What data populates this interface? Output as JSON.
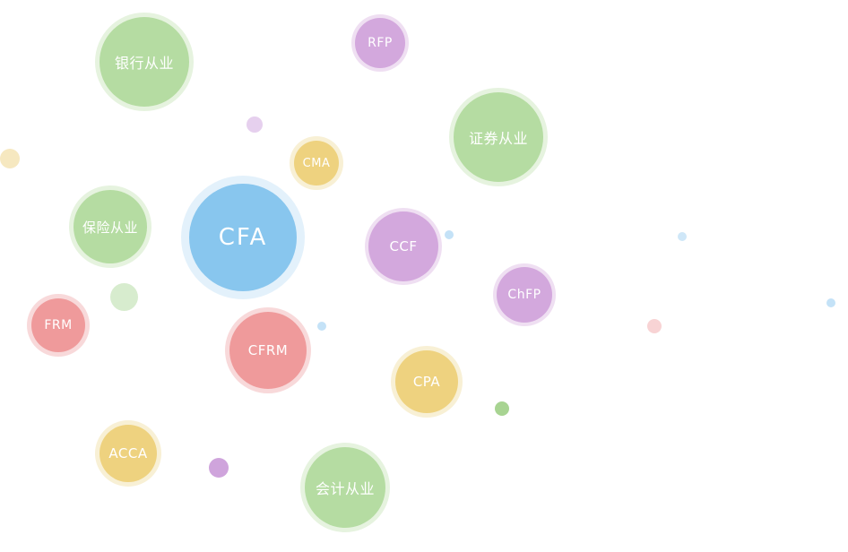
{
  "bubbles": {
    "yinhang": "银行从业",
    "rfp": "RFP",
    "zhengquan": "证券从业",
    "cma": "CMA",
    "cfa": "CFA",
    "baoxian": "保险从业",
    "ccf": "CCF",
    "chfp": "ChFP",
    "frm": "FRM",
    "cfrm": "CFRM",
    "cpa": "CPA",
    "acca": "ACCA",
    "kuaiji": "会计从业"
  },
  "colors": {
    "green": "#b5dca2",
    "yellow": "#eed27f",
    "purple": "#d3a8dd",
    "red": "#ef9a9b",
    "blue": "#88c6ee"
  }
}
